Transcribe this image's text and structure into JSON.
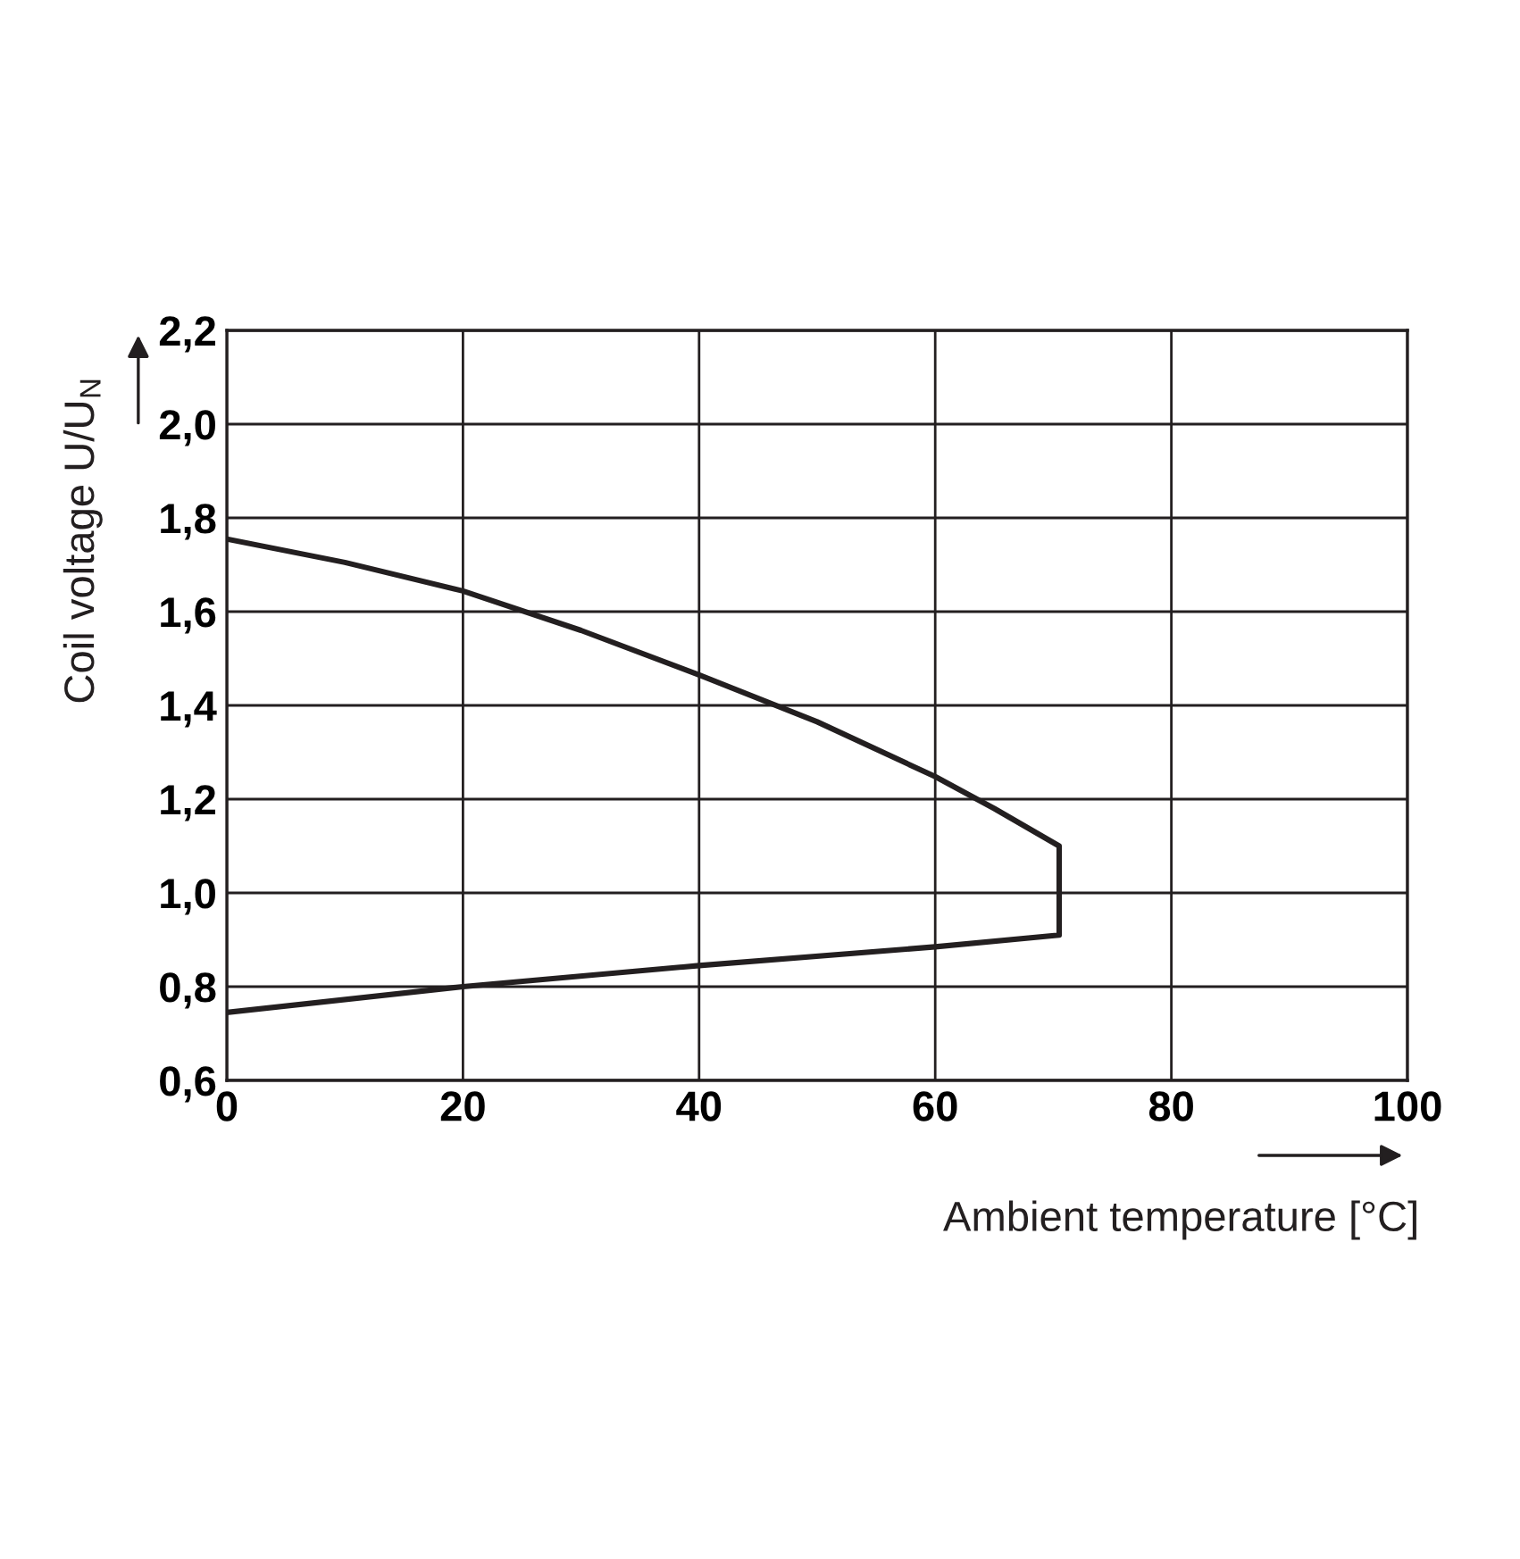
{
  "chart_data": {
    "type": "line",
    "xlabel": "Ambient temperature [°C]",
    "ylabel": "Coil voltage U/U$_{N}$",
    "series": [
      {
        "color": "#231f20",
        "x": [
          0,
          10,
          20,
          30,
          40,
          50,
          60,
          65,
          70.5,
          70.5,
          60,
          40,
          20,
          0
        ],
        "values": [
          1.755,
          1.705,
          1.644,
          1.56,
          1.465,
          1.365,
          1.248,
          1.18,
          1.1,
          0.91,
          0.885,
          0.845,
          0.8,
          0.745
        ]
      }
    ],
    "xlim": [
      0,
      100
    ],
    "xticks": [
      0,
      20,
      40,
      60,
      80,
      100
    ],
    "ylim": [
      0.6,
      2.2
    ],
    "yticks": [
      {
        "value": 0.6,
        "label": "0,6"
      },
      {
        "value": 0.8,
        "label": "0,8"
      },
      {
        "value": 1.0,
        "label": "1,0"
      },
      {
        "value": 1.2,
        "label": "1,2"
      },
      {
        "value": 1.4,
        "label": "1,4"
      },
      {
        "value": 1.6,
        "label": "1,6"
      },
      {
        "value": 1.8,
        "label": "1,8"
      },
      {
        "value": 2.0,
        "label": "2,0"
      },
      {
        "value": 2.2,
        "label": "2,2"
      }
    ],
    "grid": true,
    "marker": "none",
    "line_style": "solid",
    "legend": false
  }
}
